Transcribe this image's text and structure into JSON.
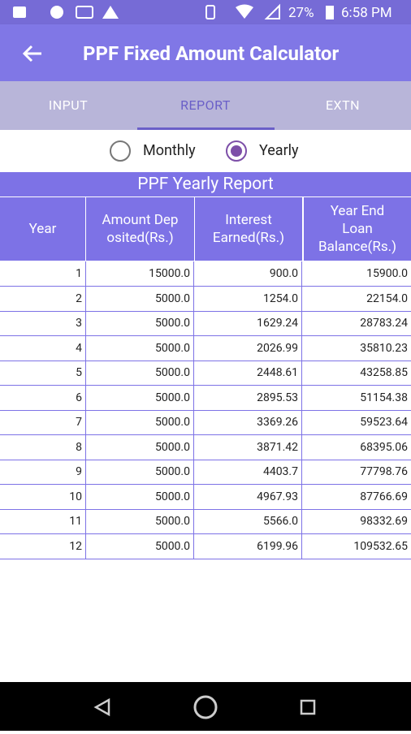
{
  "status_bar": {
    "battery": "27%",
    "time": "6:58 PM"
  },
  "app_bar": {
    "title": "PPF Fixed Amount Calculator"
  },
  "tabs": [
    "INPUT",
    "REPORT",
    "EXTN"
  ],
  "options": [
    "Monthly",
    "Yearly"
  ],
  "report": {
    "title": "PPF Yearly Report",
    "headers": [
      [
        "Year"
      ],
      [
        "Amount Dep",
        "osited(Rs.)"
      ],
      [
        "Interest",
        "Earned(Rs.)"
      ],
      [
        "Year End",
        "Loan",
        "Balance(Rs.)"
      ]
    ],
    "rows": [
      [
        "1",
        "15000.0",
        "900.0",
        "15900.0"
      ],
      [
        "2",
        "5000.0",
        "1254.0",
        "22154.0"
      ],
      [
        "3",
        "5000.0",
        "1629.24",
        "28783.24"
      ],
      [
        "4",
        "5000.0",
        "2026.99",
        "35810.23"
      ],
      [
        "5",
        "5000.0",
        "2448.61",
        "43258.85"
      ],
      [
        "6",
        "5000.0",
        "2895.53",
        "51154.38"
      ],
      [
        "7",
        "5000.0",
        "3369.26",
        "59523.64"
      ],
      [
        "8",
        "5000.0",
        "3871.42",
        "68395.06"
      ],
      [
        "9",
        "5000.0",
        "4403.7",
        "77798.76"
      ],
      [
        "10",
        "5000.0",
        "4967.93",
        "87766.69"
      ],
      [
        "11",
        "5000.0",
        "5566.0",
        "98332.69"
      ],
      [
        "12",
        "5000.0",
        "6199.96",
        "109532.65"
      ]
    ]
  }
}
